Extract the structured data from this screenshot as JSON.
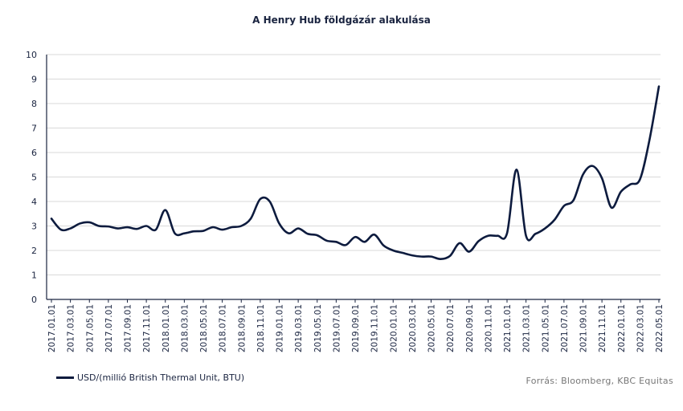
{
  "chart_data": {
    "type": "line",
    "title": "A Henry Hub földgázár alakulása",
    "xlabel": "",
    "ylabel": "",
    "ylim": [
      0,
      10
    ],
    "yticks": [
      0,
      1,
      2,
      3,
      4,
      5,
      6,
      7,
      8,
      9,
      10
    ],
    "grid": true,
    "legend_position": "bottom-left",
    "line_color": "#0d1b3e",
    "x_tick_labels": [
      "2017.01.01",
      "2017.03.01",
      "2017.05.01",
      "2017.07.01",
      "2017.09.01",
      "2017.11.01",
      "2018.01.01",
      "2018.03.01",
      "2018.05.01",
      "2018.07.01",
      "2018.09.01",
      "2018.11.01",
      "2019.01.01",
      "2019.03.01",
      "2019.05.01",
      "2019.07.01",
      "2019.09.01",
      "2019.11.01",
      "2020.01.01",
      "2020.03.01",
      "2020.05.01",
      "2020.07.01",
      "2020.09.01",
      "2020.11.01",
      "2021.01.01",
      "2021.03.01",
      "2021.05.01",
      "2021.07.01",
      "2021.09.01",
      "2021.11.01",
      "2022.01.01",
      "2022.03.01",
      "2022.05.01"
    ],
    "series": [
      {
        "name": "USD/(millió British Thermal Unit, BTU)",
        "x": [
          "2017.01.01",
          "2017.02.01",
          "2017.03.01",
          "2017.04.01",
          "2017.05.01",
          "2017.06.01",
          "2017.07.01",
          "2017.08.01",
          "2017.09.01",
          "2017.10.01",
          "2017.11.01",
          "2017.12.01",
          "2018.01.01",
          "2018.02.01",
          "2018.03.01",
          "2018.04.01",
          "2018.05.01",
          "2018.06.01",
          "2018.07.01",
          "2018.08.01",
          "2018.09.01",
          "2018.10.01",
          "2018.11.01",
          "2018.12.01",
          "2019.01.01",
          "2019.02.01",
          "2019.03.01",
          "2019.04.01",
          "2019.05.01",
          "2019.06.01",
          "2019.07.01",
          "2019.08.01",
          "2019.09.01",
          "2019.10.01",
          "2019.11.01",
          "2019.12.01",
          "2020.01.01",
          "2020.02.01",
          "2020.03.01",
          "2020.04.01",
          "2020.05.01",
          "2020.06.01",
          "2020.07.01",
          "2020.08.01",
          "2020.09.01",
          "2020.10.01",
          "2020.11.01",
          "2020.12.01",
          "2021.01.01",
          "2021.02.01",
          "2021.03.01",
          "2021.04.01",
          "2021.05.01",
          "2021.06.01",
          "2021.07.01",
          "2021.08.01",
          "2021.09.01",
          "2021.10.01",
          "2021.11.01",
          "2021.12.01",
          "2022.01.01",
          "2022.02.01",
          "2022.03.01",
          "2022.04.01",
          "2022.05.01"
        ],
        "values": [
          3.3,
          2.85,
          2.9,
          3.1,
          3.15,
          3.0,
          2.98,
          2.9,
          2.95,
          2.88,
          3.0,
          2.85,
          3.65,
          2.7,
          2.7,
          2.78,
          2.8,
          2.95,
          2.85,
          2.95,
          3.0,
          3.3,
          4.1,
          4.0,
          3.1,
          2.7,
          2.9,
          2.68,
          2.62,
          2.4,
          2.35,
          2.22,
          2.55,
          2.35,
          2.65,
          2.2,
          2.0,
          1.9,
          1.8,
          1.75,
          1.75,
          1.65,
          1.78,
          2.3,
          1.95,
          2.38,
          2.6,
          2.6,
          2.7,
          5.3,
          2.6,
          2.68,
          2.9,
          3.25,
          3.82,
          4.05,
          5.1,
          5.45,
          4.95,
          3.75,
          4.4,
          4.7,
          4.9,
          6.5,
          8.7
        ]
      }
    ]
  },
  "legend": {
    "label": "USD/(millió British Thermal Unit, BTU)"
  },
  "source": "Forrás: Bloomberg,  KBC Equitas"
}
